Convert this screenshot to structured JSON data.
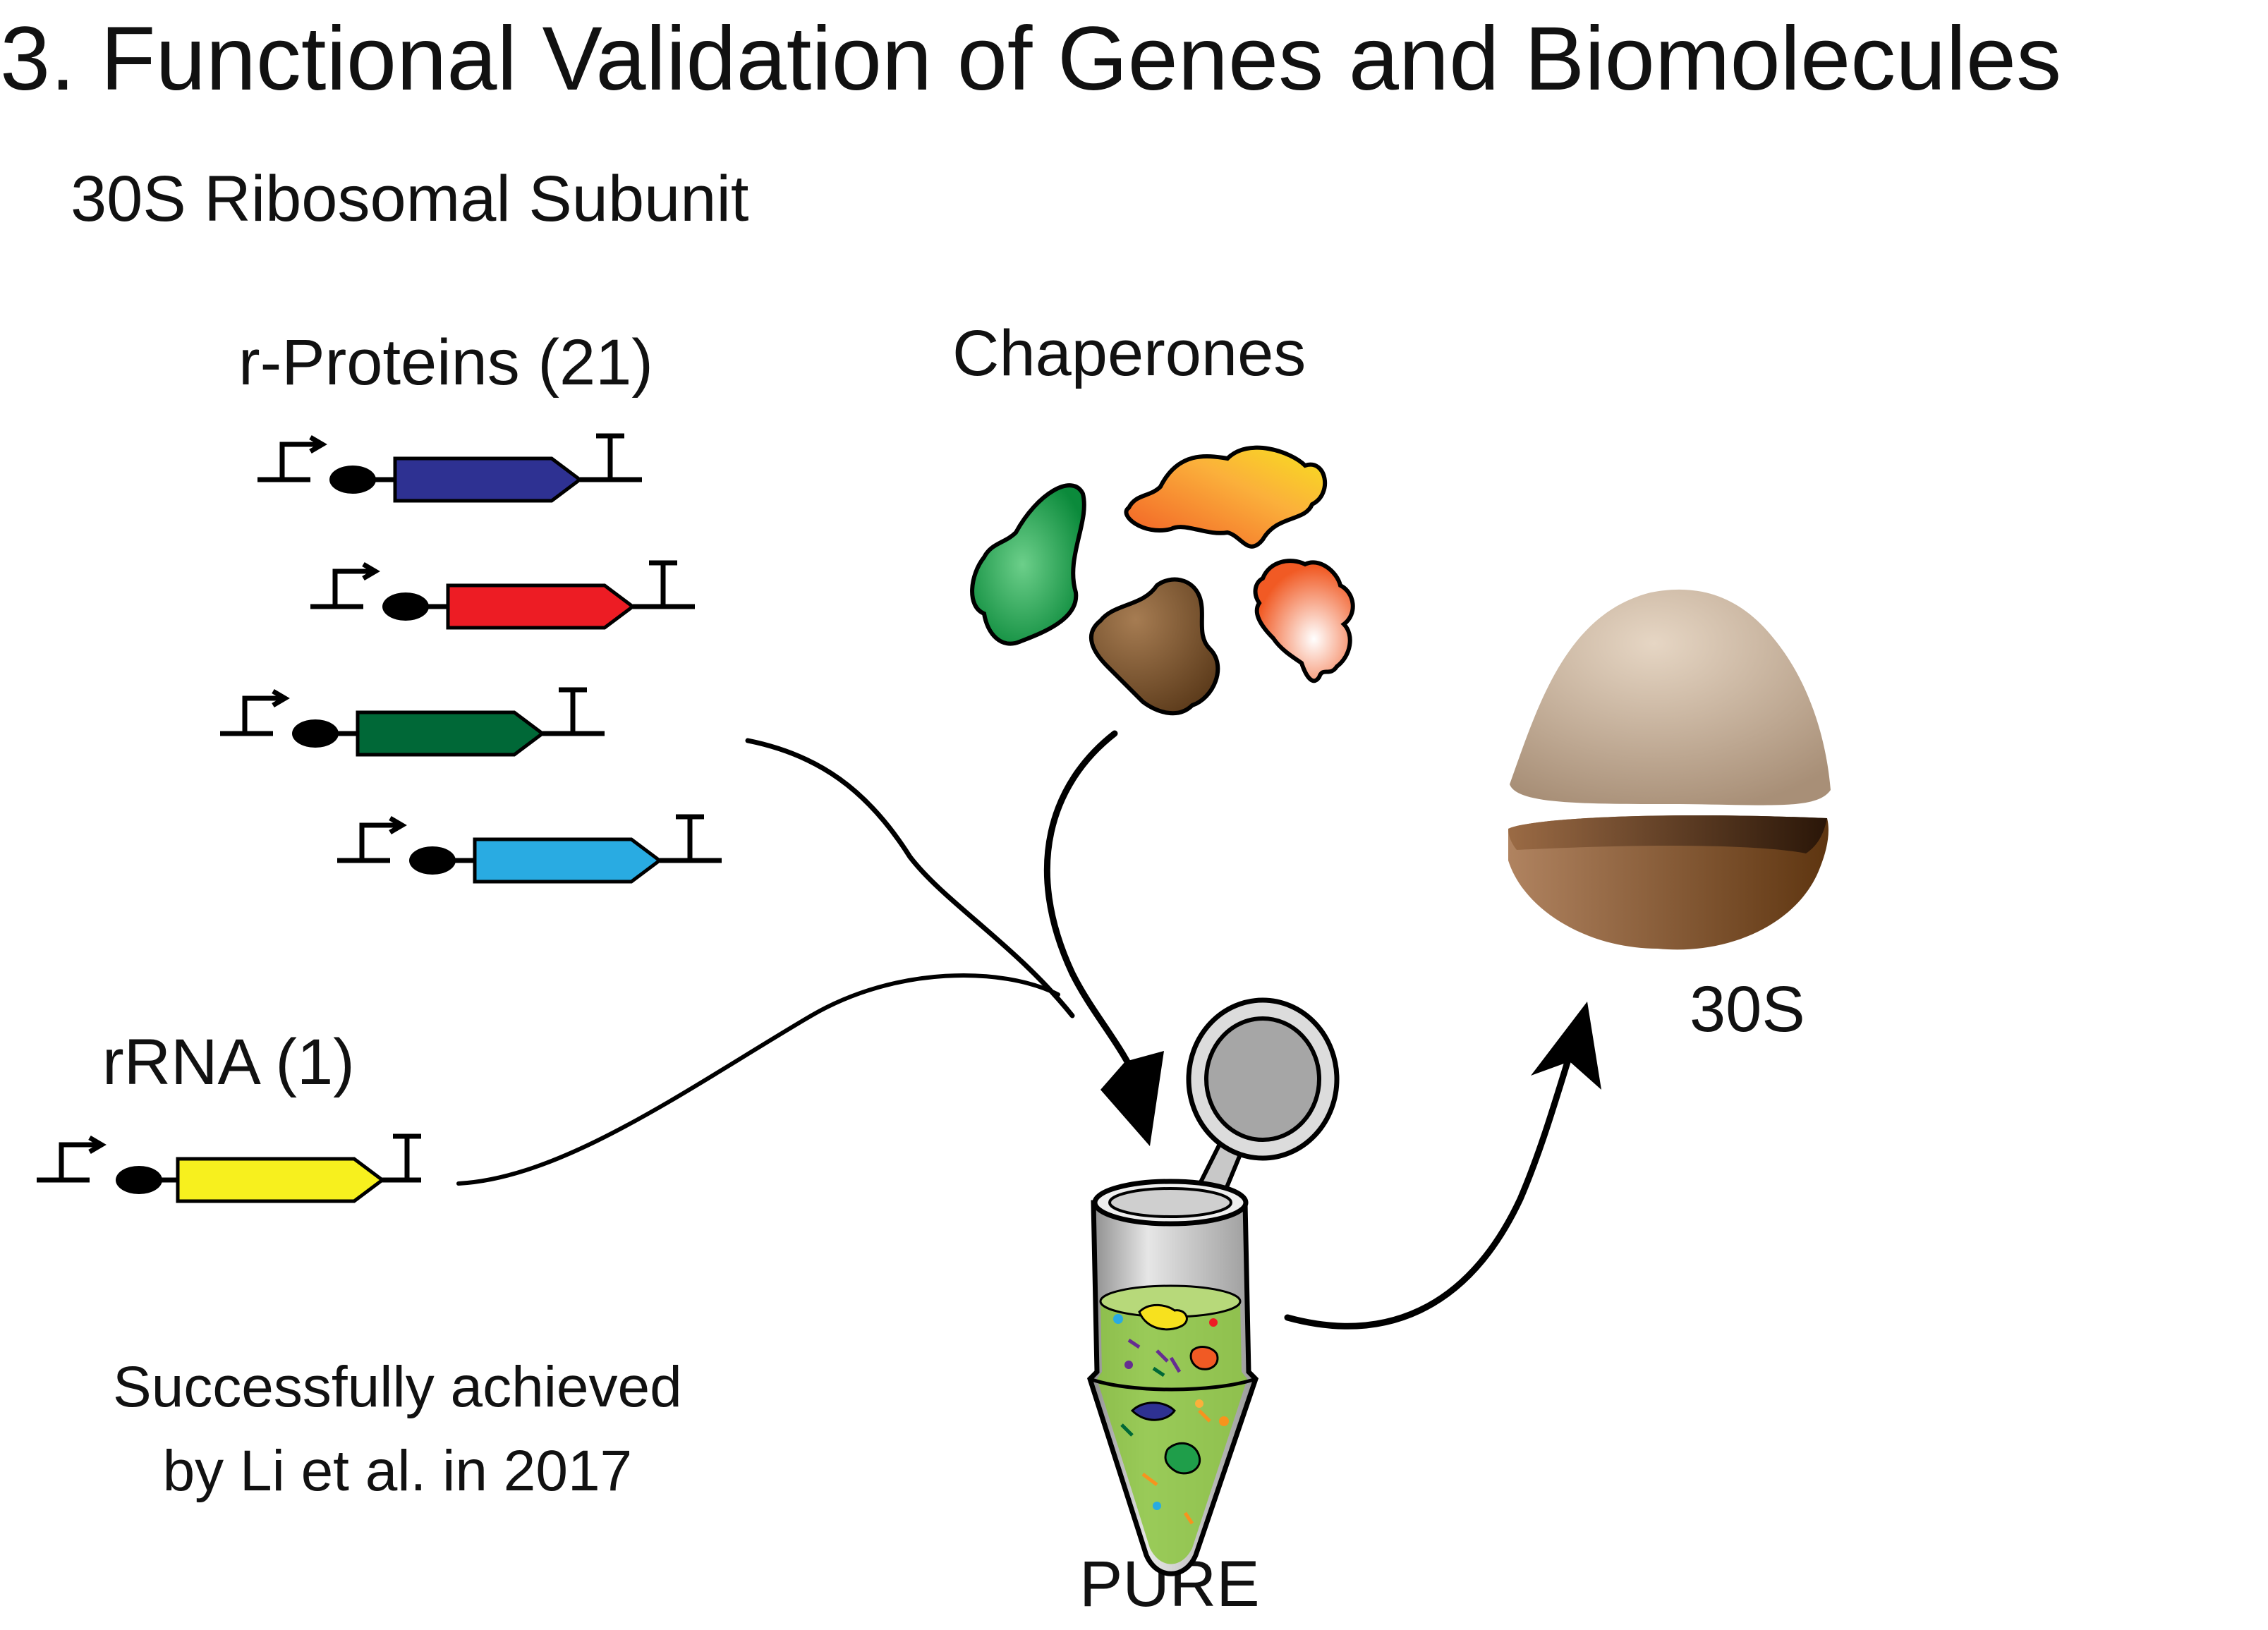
{
  "title": "3. Functional Validation of Genes and Biomolecules",
  "subtitle": "30S Ribosomal  Subunit",
  "labels": {
    "r_proteins": "r-Proteins (21)",
    "chaperones": "Chaperones",
    "rrna": "rRNA (1)",
    "product": "30S",
    "reaction": "PURE"
  },
  "note": {
    "line1": "Successfully achieved",
    "line2": "by Li et al. in 2017"
  },
  "colors": {
    "gene_1": "#2e3192",
    "gene_2": "#ed1c24",
    "gene_3": "#006837",
    "gene_4": "#29abe2",
    "gene_rrna": "#f7f01e",
    "chaperone_green": "#1f9e4a",
    "chaperone_yellow_orange": "#f7941d",
    "chaperone_brown": "#754c24",
    "chaperone_red_orange": "#f15a24",
    "ribosome_large": "#c9b8a6",
    "ribosome_small": "#8b5a2b",
    "pure_liquid": "#8cc63f"
  }
}
